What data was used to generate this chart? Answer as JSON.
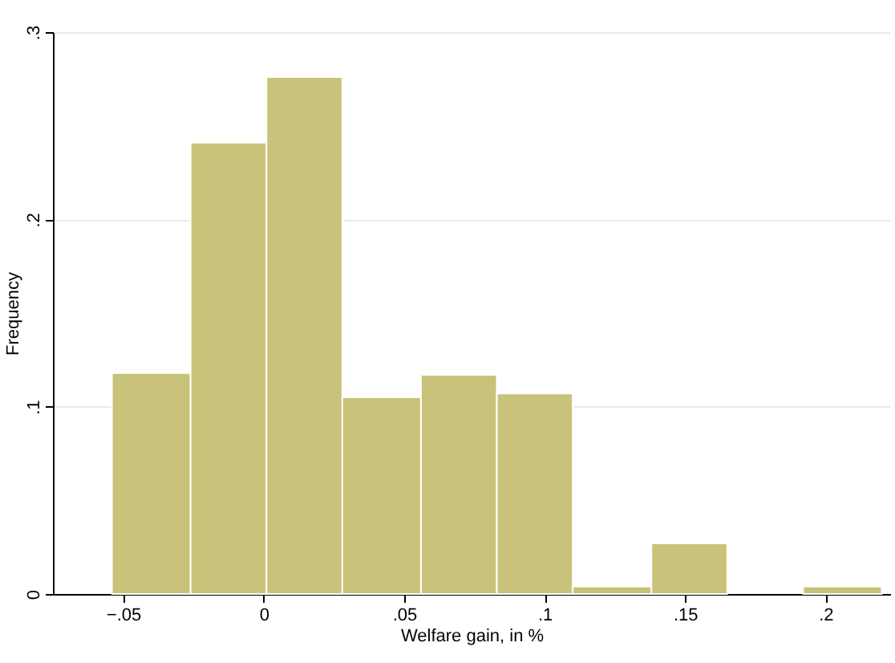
{
  "chart_data": {
    "type": "histogram",
    "xlabel": "Welfare gain, in %",
    "ylabel": "Frequency",
    "bins": [
      -0.054,
      -0.026,
      0.001,
      0.028,
      0.056,
      0.083,
      0.11,
      0.138,
      0.165,
      0.192,
      0.22
    ],
    "values": [
      0.118,
      0.241,
      0.276,
      0.105,
      0.117,
      0.107,
      0.004,
      0.027,
      null,
      0.004
    ],
    "color": "#c8c27a",
    "xlim": [
      -0.075,
      0.223
    ],
    "ylim": [
      0,
      0.3
    ],
    "xticks": [
      {
        "value": -0.05,
        "label": "−.05"
      },
      0,
      {
        "value": 0.05,
        "label": ".05"
      },
      {
        "value": 0.1,
        "label": ".1"
      },
      {
        "value": 0.15,
        "label": ".15"
      },
      {
        "value": 0.2,
        "label": ".2"
      }
    ],
    "yticks": [
      0,
      {
        "value": 0.1,
        "label": ".1"
      },
      {
        "value": 0.2,
        "label": ".2"
      },
      {
        "value": 0.3,
        "label": ".3"
      }
    ],
    "grid": "y"
  }
}
